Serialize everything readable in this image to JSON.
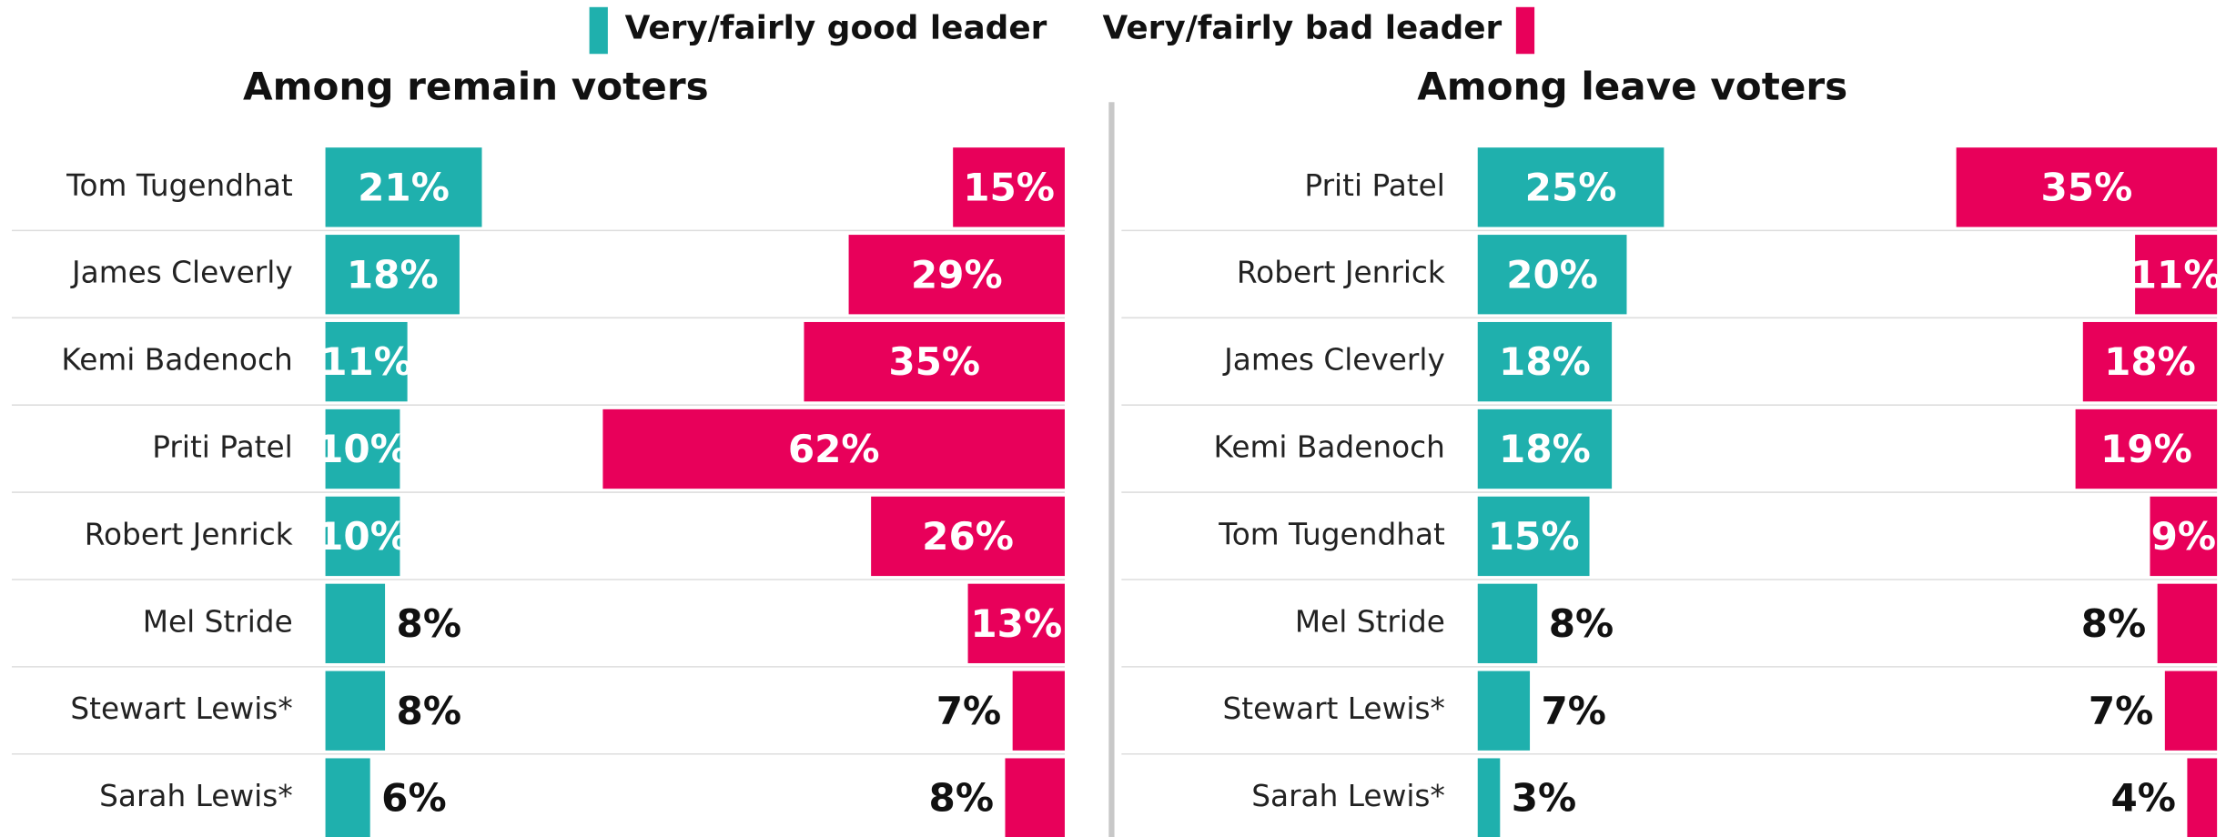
{
  "chart_data": [
    {
      "type": "bar",
      "title": "Among remain voters",
      "categories": [
        "Tom Tugendhat",
        "James Cleverly",
        "Kemi Badenoch",
        "Priti Patel",
        "Robert Jenrick",
        "Mel Stride",
        "Stewart Lewis*",
        "Sarah Lewis*"
      ],
      "series": [
        {
          "name": "Very/fairly good leader",
          "color": "#1fb0ad",
          "values": [
            21,
            18,
            11,
            10,
            10,
            8,
            8,
            6
          ],
          "value_labels": [
            "21%",
            "18%",
            "11%",
            "10%",
            "10%",
            "8%",
            "8%",
            "6%"
          ]
        },
        {
          "name": "Very/fairly bad leader",
          "color": "#e8005a",
          "values": [
            15,
            29,
            35,
            62,
            26,
            13,
            7,
            8
          ],
          "value_labels": [
            "15%",
            "29%",
            "35%",
            "62%",
            "26%",
            "13%",
            "7%",
            "8%"
          ]
        }
      ]
    },
    {
      "type": "bar",
      "title": "Among leave voters",
      "categories": [
        "Priti Patel",
        "Robert Jenrick",
        "James Cleverly",
        "Kemi Badenoch",
        "Tom Tugendhat",
        "Mel Stride",
        "Stewart Lewis*",
        "Sarah Lewis*"
      ],
      "series": [
        {
          "color": "#1fb0ad",
          "values": [
            25,
            20,
            18,
            18,
            15,
            8,
            7,
            3
          ],
          "value_labels": [
            "25%",
            "20%",
            "18%",
            "18%",
            "15%",
            "8%",
            "7%",
            "3%"
          ]
        },
        {
          "color": "#e8005a",
          "values": [
            35,
            11,
            18,
            19,
            9,
            8,
            7,
            4
          ],
          "value_labels": [
            "35%",
            "11%",
            "18%",
            "19%",
            "9%",
            "8%",
            "7%",
            "4%"
          ]
        }
      ]
    }
  ]
}
